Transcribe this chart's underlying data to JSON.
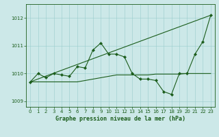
{
  "title": "Graphe pression niveau de la mer (hPa)",
  "background_color": "#cce8e8",
  "grid_color": "#99cccc",
  "line_color": "#1a5c1a",
  "xlim": [
    -0.5,
    23.5
  ],
  "ylim": [
    1008.8,
    1012.5
  ],
  "yticks": [
    1009,
    1010,
    1011,
    1012
  ],
  "xticks": [
    0,
    1,
    2,
    3,
    4,
    5,
    6,
    7,
    8,
    9,
    10,
    11,
    12,
    13,
    14,
    15,
    16,
    17,
    18,
    19,
    20,
    21,
    22,
    23
  ],
  "series1_x": [
    0,
    1,
    2,
    3,
    4,
    5,
    6,
    7,
    8,
    9,
    10,
    11,
    12,
    13,
    14,
    15,
    16,
    17,
    18,
    19,
    20,
    21,
    22,
    23
  ],
  "series1_y": [
    1009.7,
    1010.0,
    1009.85,
    1010.0,
    1009.95,
    1009.9,
    1010.25,
    1010.2,
    1010.85,
    1011.1,
    1010.7,
    1010.7,
    1010.6,
    1010.0,
    1009.8,
    1009.8,
    1009.75,
    1009.35,
    1009.25,
    1010.0,
    1010.0,
    1010.7,
    1011.15,
    1012.1
  ],
  "series2_x": [
    0,
    23
  ],
  "series2_y": [
    1009.7,
    1012.1
  ],
  "series3_x": [
    0,
    1,
    2,
    3,
    4,
    5,
    6,
    7,
    8,
    9,
    10,
    11,
    12,
    13,
    14,
    15,
    16,
    17,
    18,
    19,
    20,
    21,
    22,
    23
  ],
  "series3_y": [
    1009.7,
    1009.7,
    1009.7,
    1009.7,
    1009.7,
    1009.7,
    1009.7,
    1009.75,
    1009.8,
    1009.85,
    1009.9,
    1009.95,
    1009.95,
    1009.95,
    1009.95,
    1009.95,
    1009.98,
    1009.98,
    1009.98,
    1009.98,
    1010.0,
    1010.0,
    1010.0,
    1010.0
  ],
  "tick_fontsize": 5,
  "label_fontsize": 6,
  "linewidth": 0.8,
  "markersize": 2.2
}
